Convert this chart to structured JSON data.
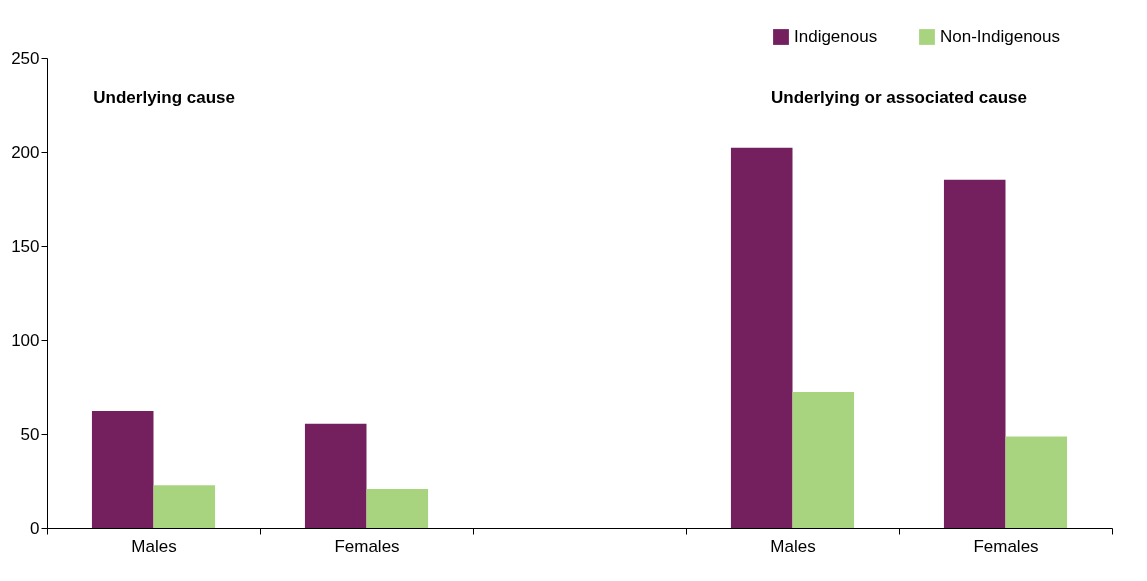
{
  "chart_data": {
    "type": "bar",
    "categories": [
      "Males",
      "Females",
      null,
      "Males",
      "Females"
    ],
    "series": [
      {
        "name": "Indigenous",
        "color": "#74205f",
        "values": [
          62.3,
          55.5,
          null,
          202.2,
          185.3
        ]
      },
      {
        "name": "Non-Indigenous",
        "color": "#a9d47f",
        "values": [
          22.7,
          20.8,
          null,
          72.4,
          48.7
        ]
      }
    ],
    "ylim": [
      0,
      250
    ],
    "yticks": [
      0,
      50,
      100,
      150,
      200,
      250
    ],
    "grid": false,
    "legend": "top right",
    "annotations": [
      "Underlying cause",
      "Underlying or associated cause"
    ]
  }
}
